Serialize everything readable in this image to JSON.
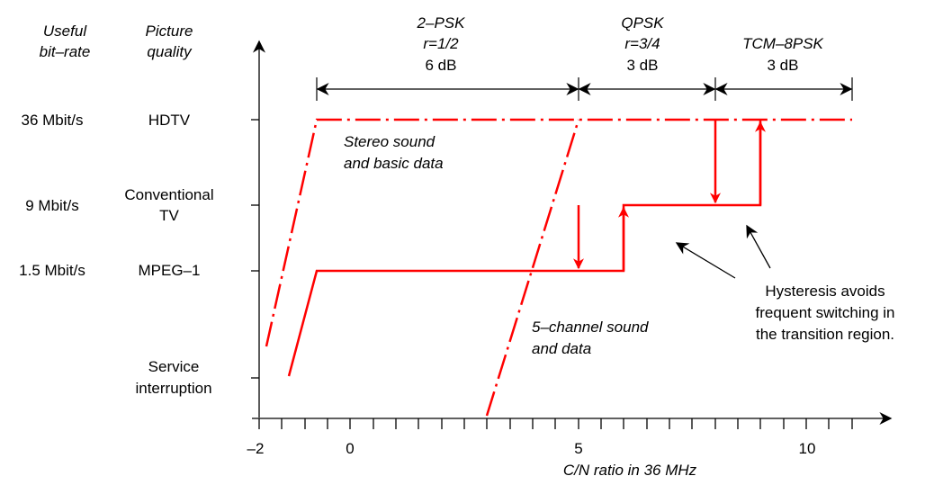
{
  "colors": {
    "curve": "#ff0000",
    "axis": "#000000",
    "background": "#ffffff"
  },
  "header": {
    "col1": [
      "Useful",
      "bit–rate"
    ],
    "col2": [
      "Picture",
      "quality"
    ]
  },
  "levels": [
    {
      "rate": "36 Mbit/s",
      "quality": [
        "HDTV"
      ]
    },
    {
      "rate": "9 Mbit/s",
      "quality": [
        "Conventional",
        "TV"
      ]
    },
    {
      "rate": "1.5 Mbit/s",
      "quality": [
        "MPEG–1"
      ]
    },
    {
      "rate": "",
      "quality": [
        "Service",
        "interruption"
      ]
    }
  ],
  "modes": [
    {
      "name": "2–PSK",
      "rate": "r=1/2",
      "span": "6 dB"
    },
    {
      "name": "QPSK",
      "rate": "r=3/4",
      "span": "3 dB"
    },
    {
      "name": "TCM–8PSK",
      "rate": "",
      "span": "3 dB"
    }
  ],
  "x_axis": {
    "label": "C/N ratio in 36 MHz",
    "ticks": [
      "–2",
      "0",
      "5",
      "10"
    ]
  },
  "annotations": {
    "stereo": [
      "Stereo sound",
      "and basic data"
    ],
    "five_channel": [
      "5–channel sound",
      "and data"
    ],
    "hysteresis": [
      "Hysteresis avoids",
      "frequent switching in",
      "the transition region."
    ]
  }
}
